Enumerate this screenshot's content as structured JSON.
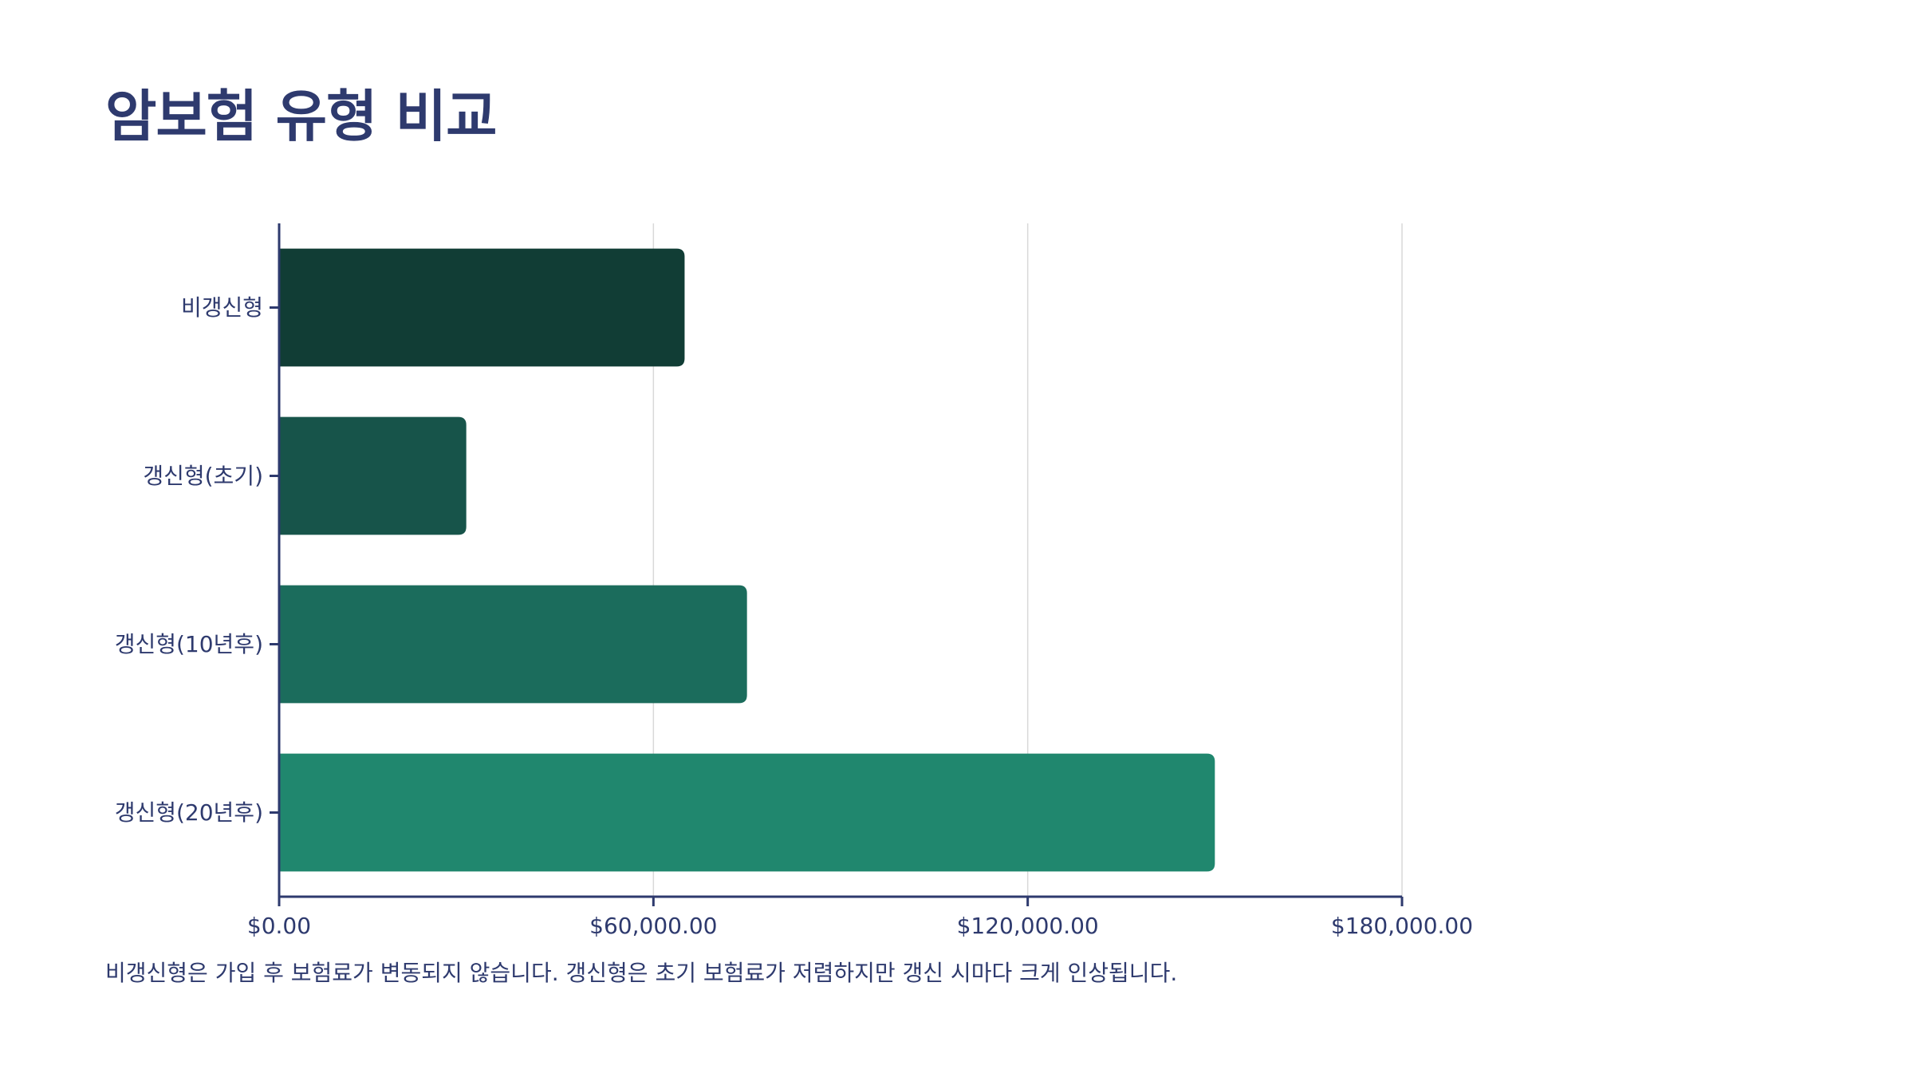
{
  "page": {
    "title": "암보험 유형 비교",
    "footnote": "비갱신형은 가입 후 보험료가 변동되지 않습니다. 갱신형은 초기 보험료가 저렴하지만 갱신 시마다 크게 인상됩니다."
  },
  "chart_data": {
    "type": "bar",
    "orientation": "horizontal",
    "categories": [
      "비갱신형",
      "갱신형(초기)",
      "갱신형(10년후)",
      "갱신형(20년후)"
    ],
    "values": [
      65000,
      30000,
      75000,
      150000
    ],
    "bar_colors": [
      "#113d35",
      "#17544a",
      "#1b6c5c",
      "#20876e"
    ],
    "xlim": [
      0,
      180000
    ],
    "x_ticks": [
      0,
      60000,
      120000,
      180000
    ],
    "x_tick_labels": [
      "$0.00",
      "$60,000.00",
      "$120,000.00",
      "$180,000.00"
    ],
    "grid": true,
    "axis_color": "#2e3a6e",
    "grid_color": "#d9d9d9"
  }
}
